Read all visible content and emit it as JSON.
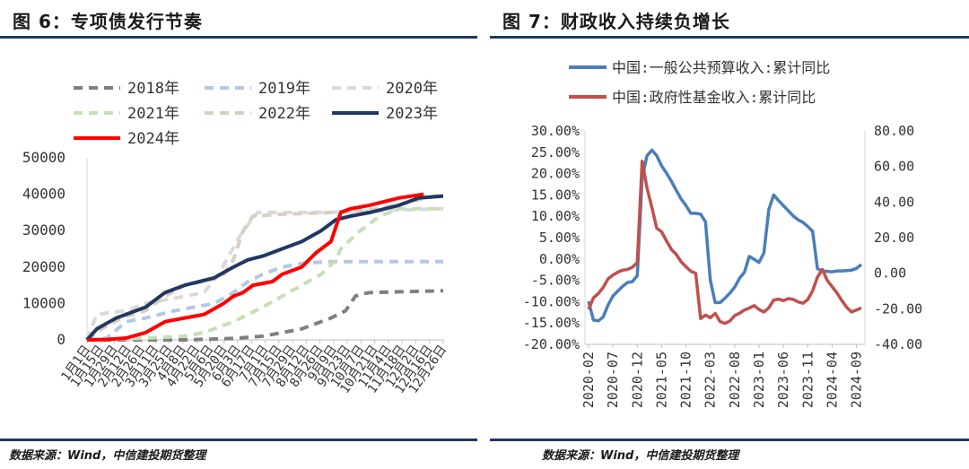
{
  "left": {
    "title": "图 6：专项债发行节奏",
    "source": "数据来源：Wind，中信建投期货整理",
    "chart_data": {
      "type": "line",
      "ylim": [
        0,
        50000
      ],
      "yticks": [
        "0",
        "10000",
        "20000",
        "30000",
        "40000",
        "50000"
      ],
      "xticks": [
        "1月1日",
        "1月15日",
        "1月29日",
        "2月12日",
        "2月26日",
        "3月11日",
        "3月25日",
        "4月8日",
        "4月22日",
        "5月6日",
        "5月20日",
        "6月3日",
        "6月17日",
        "7月1日",
        "7月15日",
        "7月29日",
        "8月12日",
        "8月26日",
        "9月9日",
        "9月23日",
        "10月7日",
        "10月21日",
        "11月4日",
        "11月18日",
        "12月2日",
        "12月16日",
        "12月26日"
      ],
      "series": [
        {
          "name": "2018年",
          "color": "#808080",
          "dash": true,
          "x": [
            0,
            50,
            100,
            150,
            180,
            200,
            220,
            250,
            265,
            275,
            280,
            290,
            365
          ],
          "y": [
            0,
            0,
            0,
            400,
            1000,
            2000,
            3000,
            6000,
            8000,
            12000,
            12500,
            13000,
            13500
          ]
        },
        {
          "name": "2019年",
          "color": "#b4c7e7",
          "dash": true,
          "x": [
            0,
            20,
            40,
            60,
            90,
            110,
            130,
            150,
            165,
            180,
            200,
            220,
            250,
            290,
            365
          ],
          "y": [
            0,
            500,
            5000,
            6000,
            8000,
            9000,
            10000,
            13000,
            16000,
            18000,
            20000,
            21000,
            21500,
            21500,
            21500
          ]
        },
        {
          "name": "2020年",
          "color": "#d9d9d9",
          "dash": true,
          "x": [
            0,
            10,
            40,
            60,
            80,
            100,
            120,
            135,
            145,
            160,
            175,
            200,
            250,
            300,
            365
          ],
          "y": [
            0,
            7000,
            8000,
            10000,
            11000,
            12000,
            13000,
            18000,
            23000,
            30000,
            35000,
            35000,
            35000,
            35500,
            36000
          ]
        },
        {
          "name": "2021年",
          "color": "#c5e0b4",
          "dash": true,
          "x": [
            0,
            60,
            100,
            120,
            150,
            180,
            200,
            220,
            240,
            255,
            260,
            280,
            300,
            320,
            365
          ],
          "y": [
            0,
            500,
            1000,
            2000,
            5000,
            9000,
            12000,
            15000,
            18000,
            22000,
            25000,
            30000,
            34000,
            36000,
            36000
          ]
        },
        {
          "name": "2022年",
          "color": "#d9cfc1",
          "dash": true,
          "x": [
            0,
            15,
            35,
            60,
            80,
            100,
            120,
            140,
            150,
            160,
            170,
            200,
            250,
            300,
            365
          ],
          "y": [
            0,
            3000,
            6000,
            8000,
            12000,
            15000,
            16000,
            18000,
            22000,
            30000,
            34000,
            34500,
            35000,
            36000,
            40000
          ]
        },
        {
          "name": "2023年",
          "color": "#1f3864",
          "dash": false,
          "x": [
            0,
            10,
            30,
            60,
            80,
            100,
            130,
            150,
            165,
            180,
            200,
            220,
            240,
            255,
            270,
            290,
            320,
            340,
            365
          ],
          "y": [
            0,
            3000,
            6000,
            9000,
            13000,
            15000,
            17000,
            20000,
            22000,
            23000,
            25000,
            27000,
            30000,
            33000,
            34000,
            35000,
            37000,
            39000,
            39500
          ]
        },
        {
          "name": "2024年",
          "color": "#ff0000",
          "dash": false,
          "x": [
            0,
            20,
            40,
            60,
            80,
            100,
            120,
            140,
            150,
            160,
            170,
            190,
            200,
            220,
            235,
            250,
            260,
            270,
            290,
            320,
            345
          ],
          "y": [
            0,
            100,
            500,
            2000,
            5000,
            6000,
            7000,
            10000,
            12000,
            13000,
            15000,
            16000,
            18000,
            20000,
            24000,
            27000,
            35000,
            36000,
            37000,
            39000,
            40000
          ]
        }
      ]
    }
  },
  "right": {
    "title": "图 7：财政收入持续负增长",
    "source": "数据来源：Wind，中信建投期货整理",
    "chart_data": {
      "type": "line",
      "ylim_left": [
        -20,
        30
      ],
      "ylim_right": [
        -40,
        80
      ],
      "yticks_left": [
        "30.00%",
        "25.00%",
        "20.00%",
        "15.00%",
        "10.00%",
        "5.00%",
        "0.00%",
        "-5.00%",
        "-10.00%",
        "-15.00%",
        "-20.00%"
      ],
      "yticks_right": [
        "80.00",
        "60.00",
        "40.00",
        "20.00",
        "0.00",
        "-20.00",
        "-40.00"
      ],
      "xticks": [
        "2020-02",
        "2020-07",
        "2020-12",
        "2021-05",
        "2021-10",
        "2022-03",
        "2022-08",
        "2023-01",
        "2023-06",
        "2023-11",
        "2024-04",
        "2024-09"
      ],
      "x": [
        "2020-02",
        "2020-03",
        "2020-04",
        "2020-05",
        "2020-06",
        "2020-07",
        "2020-08",
        "2020-09",
        "2020-10",
        "2020-11",
        "2020-12",
        "2021-01",
        "2021-02",
        "2021-03",
        "2021-04",
        "2021-05",
        "2021-06",
        "2021-07",
        "2021-08",
        "2021-09",
        "2021-10",
        "2021-11",
        "2021-12",
        "2022-01",
        "2022-02",
        "2022-03",
        "2022-04",
        "2022-05",
        "2022-06",
        "2022-07",
        "2022-08",
        "2022-09",
        "2022-10",
        "2022-11",
        "2022-12",
        "2023-01",
        "2023-02",
        "2023-03",
        "2023-04",
        "2023-05",
        "2023-06",
        "2023-07",
        "2023-08",
        "2023-09",
        "2023-10",
        "2023-11",
        "2023-12",
        "2024-01",
        "2024-02",
        "2024-03",
        "2024-04",
        "2024-05",
        "2024-06",
        "2024-07",
        "2024-08",
        "2024-09",
        "2024-10"
      ],
      "series": [
        {
          "name": "中国:一般公共预算收入:累计同比",
          "color": "#4a7ebb",
          "axis": "left",
          "values": [
            -9.9,
            -14.3,
            -14.5,
            -13.6,
            -10.8,
            -8.7,
            -7.5,
            -6.4,
            -5.5,
            -5.3,
            -3.9,
            19.0,
            24.2,
            25.5,
            24.2,
            21.8,
            20.1,
            18.2,
            16.1,
            14.1,
            12.5,
            10.7,
            10.7,
            10.5,
            8.7,
            -5.0,
            -10.2,
            -10.2,
            -9.2,
            -8.0,
            -6.6,
            -4.5,
            -3.1,
            0.6,
            -0.1,
            -0.8,
            1.4,
            11.6,
            15.0,
            13.7,
            12.5,
            11.3,
            10.1,
            9.2,
            8.6,
            7.6,
            6.5,
            -2.3,
            -2.8,
            -2.9,
            -3.0,
            -2.8,
            -2.8,
            -2.7,
            -2.6,
            -2.2,
            -1.3
          ]
        },
        {
          "name": "中国:政府性基金收入:累计同比",
          "color": "#c0504d",
          "axis": "right",
          "values": [
            -20.4,
            -13.9,
            -11.4,
            -8.0,
            -3.2,
            -1.1,
            0.6,
            1.7,
            2.1,
            3.4,
            6.0,
            63.0,
            48.0,
            36.9,
            25.3,
            23.3,
            18.1,
            13.4,
            10.6,
            6.5,
            3.6,
            1.1,
            0.0,
            -25.5,
            -23.5,
            -25.0,
            -22.6,
            -27.2,
            -28.2,
            -26.9,
            -23.8,
            -22.5,
            -20.7,
            -19.6,
            -18.2,
            -20.4,
            -21.8,
            -19.5,
            -15.1,
            -14.6,
            -15.4,
            -14.3,
            -14.7,
            -16.1,
            -16.9,
            -14.8,
            -9.9,
            -2.2,
            2.1,
            -4.0,
            -7.6,
            -11.1,
            -15.4,
            -19.2,
            -21.8,
            -20.7,
            -19.5
          ]
        }
      ]
    }
  }
}
